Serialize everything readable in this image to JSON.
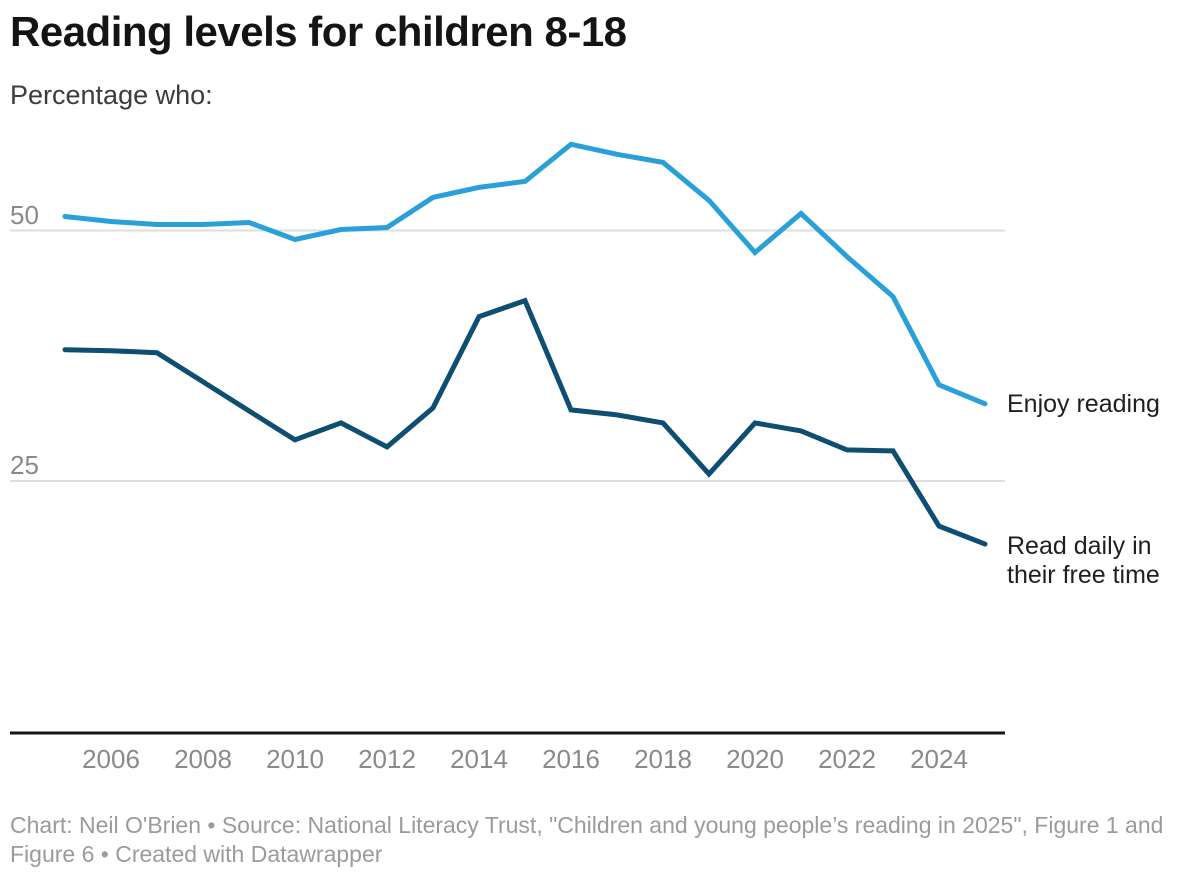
{
  "header": {
    "title": "Reading levels for children 8-18",
    "subtitle": "Percentage who:"
  },
  "colors": {
    "enjoy_line": "#2aa0d8",
    "daily_line": "#0e4e72",
    "grid": "#dedede",
    "axis": "#151515",
    "tick_text": "#8a8a8a",
    "background": "#ffffff"
  },
  "chart_data": {
    "type": "line",
    "title": "Reading levels for children 8-18",
    "subtitle": "Percentage who:",
    "x": [
      2005,
      2006,
      2007,
      2008,
      2009,
      2010,
      2011,
      2012,
      2013,
      2014,
      2015,
      2016,
      2017,
      2018,
      2019,
      2020,
      2021,
      2022,
      2023,
      2024,
      2025
    ],
    "series": [
      {
        "id": "enjoy-reading-line",
        "name": "Enjoy reading",
        "color": "#2aa0d8",
        "values": [
          51.4,
          50.9,
          50.6,
          50.6,
          50.8,
          49.1,
          50.1,
          50.3,
          53.3,
          54.3,
          54.9,
          58.6,
          57.6,
          56.8,
          53.0,
          47.8,
          51.7,
          47.4,
          43.4,
          34.6,
          32.7
        ]
      },
      {
        "id": "read-daily-line",
        "name": "Read daily in their free time",
        "color": "#0e4e72",
        "values": [
          38.1,
          38.0,
          37.8,
          34.9,
          32.0,
          29.1,
          30.8,
          28.4,
          32.3,
          41.4,
          43.0,
          32.1,
          31.6,
          30.8,
          25.7,
          30.8,
          30.0,
          28.1,
          28.0,
          20.5,
          18.7
        ]
      }
    ],
    "y_ticks": [
      25,
      50
    ],
    "x_tick_labels": [
      2006,
      2008,
      2010,
      2012,
      2014,
      2016,
      2018,
      2020,
      2022,
      2024
    ],
    "ylim": [
      0,
      60
    ],
    "grid": "horizontal-only",
    "legend_position": "right-of-line-ends"
  },
  "legend": {
    "enjoy_lines": [
      "Enjoy reading"
    ],
    "daily_lines": [
      "Read daily in",
      "their free time"
    ]
  },
  "footer": {
    "text": "Chart: Neil O'Brien • Source: National Literacy Trust, \"Children and young people’s reading in 2025\", Figure 1 and Figure 6 • Created with Datawrapper"
  }
}
